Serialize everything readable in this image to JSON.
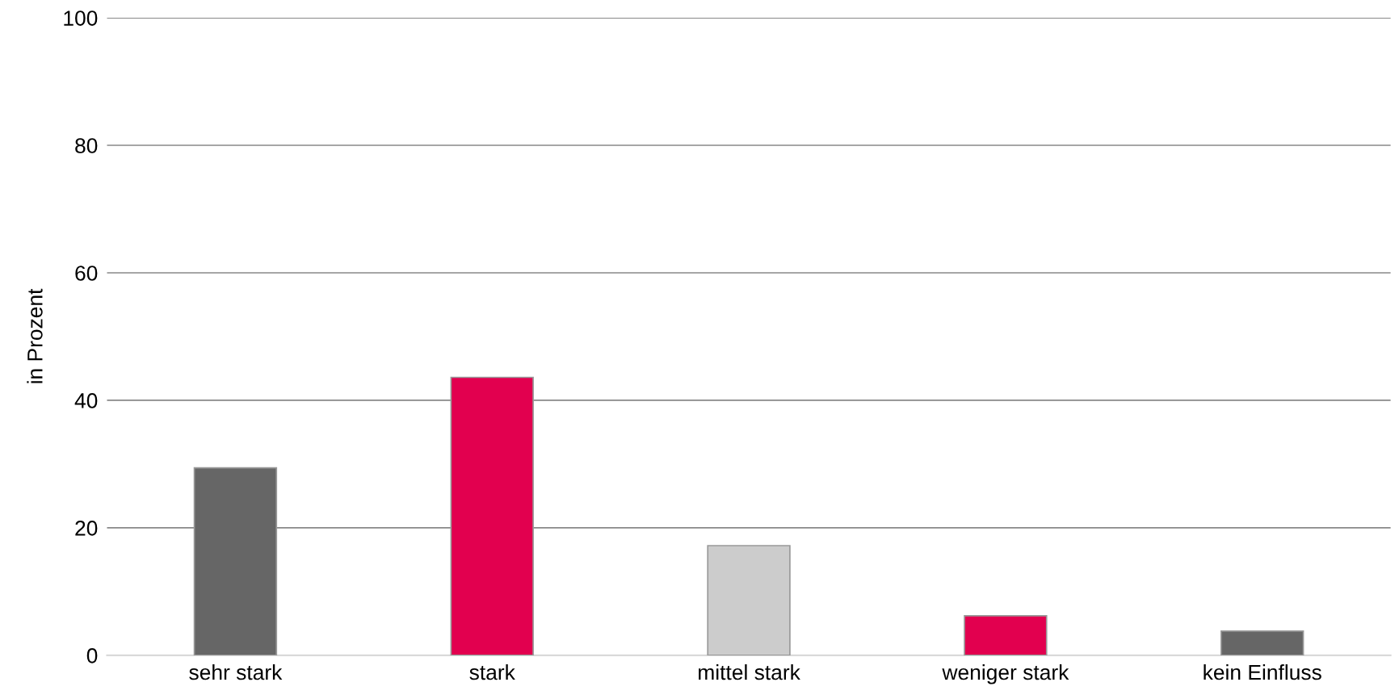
{
  "chart_data": {
    "type": "bar",
    "ylabel": "in Prozent",
    "categories": [
      "sehr stark",
      "stark",
      "mittel stark",
      "weniger stark",
      "kein Einfluss"
    ],
    "values": [
      29.4,
      43.6,
      17.2,
      6.2,
      3.8
    ],
    "colors": [
      "#666666",
      "#e2004f",
      "#cccccc",
      "#e2004f",
      "#666666"
    ],
    "ylim": [
      0,
      100
    ],
    "yticks": [
      0,
      20,
      40,
      60,
      80,
      100
    ],
    "grid": "y"
  }
}
